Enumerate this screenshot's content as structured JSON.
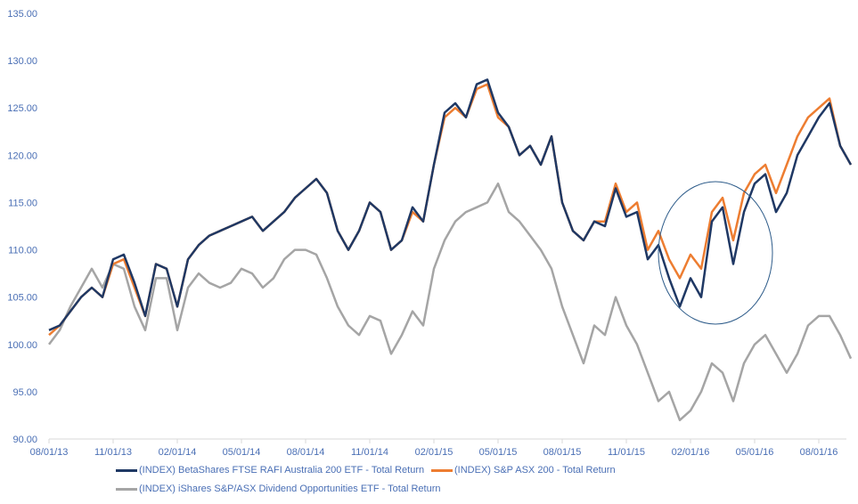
{
  "chart_data": {
    "type": "line",
    "title": "",
    "xlabel": "",
    "ylabel": "",
    "ylim": [
      90,
      135
    ],
    "yticks": [
      "90.00",
      "95.00",
      "100.00",
      "105.00",
      "110.00",
      "115.00",
      "120.00",
      "125.00",
      "130.00",
      "135.00"
    ],
    "xticks": [
      "08/01/13",
      "11/01/13",
      "02/01/14",
      "05/01/14",
      "08/01/14",
      "11/01/14",
      "02/01/15",
      "05/01/15",
      "08/01/15",
      "11/01/15",
      "02/01/16",
      "05/01/16",
      "08/01/16"
    ],
    "x_start": "2013-08-01",
    "x_step_months": 0.5,
    "grid": false,
    "legend_position": "bottom",
    "series": [
      {
        "name": "(INDEX) BetaShares FTSE RAFI Australia 200 ETF - Total Return",
        "color": "#1f3864",
        "values": [
          101.5,
          102,
          103.5,
          105,
          106,
          105,
          109,
          109.5,
          106.5,
          103,
          108.5,
          108,
          104,
          109,
          110.5,
          111.5,
          112,
          112.5,
          113,
          113.5,
          112,
          113,
          114,
          115.5,
          116.5,
          117.5,
          116,
          112,
          110,
          112,
          115,
          114,
          110,
          111,
          114.5,
          113,
          119,
          124.5,
          125.5,
          124,
          127.5,
          128,
          124.5,
          123,
          120,
          121,
          119,
          122,
          115,
          112,
          111,
          113,
          112.5,
          116.5,
          113.5,
          114,
          109,
          110.5,
          107,
          104,
          107,
          105,
          113,
          114.5,
          108.5,
          114,
          117,
          118,
          114,
          116,
          120,
          122,
          124,
          125.5,
          121,
          119
        ]
      },
      {
        "name": "(INDEX) S&P ASX 200 - Total Return",
        "color": "#ed7d31",
        "values": [
          101,
          102,
          103.5,
          105,
          106,
          105,
          108.5,
          109,
          106,
          103,
          108.5,
          108,
          104,
          109,
          110.5,
          111.5,
          112,
          112.5,
          113,
          113.5,
          112,
          113,
          114,
          115.5,
          116.5,
          117.5,
          116,
          112,
          110,
          112,
          115,
          114,
          110,
          111,
          114,
          113,
          119,
          124,
          125,
          124,
          127,
          127.5,
          124,
          123,
          120,
          121,
          119,
          122,
          115,
          112,
          111,
          113,
          113,
          117,
          114,
          115,
          110,
          112,
          109,
          107,
          109.5,
          108,
          114,
          115.5,
          111,
          116,
          118,
          119,
          116,
          119,
          122,
          124,
          125,
          126,
          121,
          119
        ]
      },
      {
        "name": "(INDEX) iShares S&P/ASX Dividend Opportunities ETF - Total Return",
        "color": "#a5a5a5",
        "values": [
          100,
          101.5,
          104,
          106,
          108,
          106,
          108.5,
          108,
          104,
          101.5,
          107,
          107,
          101.5,
          106,
          107.5,
          106.5,
          106,
          106.5,
          108,
          107.5,
          106,
          107,
          109,
          110,
          110,
          109.5,
          107,
          104,
          102,
          101,
          103,
          102.5,
          99,
          101,
          103.5,
          102,
          108,
          111,
          113,
          114,
          114.5,
          115,
          117,
          114,
          113,
          111.5,
          110,
          108,
          104,
          101,
          98,
          102,
          101,
          105,
          102,
          100,
          97,
          94,
          95,
          92,
          93,
          95,
          98,
          97,
          94,
          98,
          100,
          101,
          99,
          97,
          99,
          102,
          103,
          103,
          101,
          98.5
        ]
      }
    ]
  }
}
